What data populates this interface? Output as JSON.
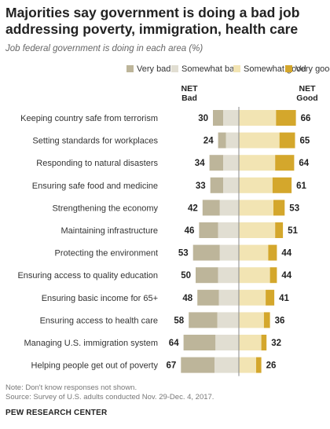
{
  "title": "Majorities say government is doing a bad job addressing poverty, immigration, health care",
  "subtitle": "Job federal government is doing in each area (%)",
  "net_bad_label": [
    "NET",
    "Bad"
  ],
  "net_good_label": [
    "NET",
    "Good"
  ],
  "colors": {
    "very_bad": "#bdb59a",
    "somewhat_bad": "#e1ded2",
    "somewhat_good": "#f2e4b3",
    "very_good": "#d4a72c",
    "divider": "#888888"
  },
  "legend": [
    {
      "name": "Very bad",
      "color": "#bdb59a"
    },
    {
      "name": "Somewhat bad",
      "color": "#e1ded2"
    },
    {
      "name": "Somewhat good",
      "color": "#f2e4b3"
    },
    {
      "name": "Very good",
      "color": "#d4a72c"
    }
  ],
  "chart_data": {
    "type": "bar",
    "stacked": "diverging",
    "categories": [
      "Keeping country safe from terrorism",
      "Setting standards for workplaces",
      "Responding to natural disasters",
      "Ensuring safe food and medicine",
      "Strengthening the economy",
      "Maintaining infrastructure",
      "Protecting the environment",
      "Ensuring access to quality education",
      "Ensuring basic income for 65+",
      "Ensuring access to health care",
      "Managing U.S. immigration system",
      "Helping people get out of poverty"
    ],
    "series": [
      {
        "name": "Very bad",
        "values": [
          12,
          9,
          16,
          15,
          20,
          22,
          31,
          26,
          25,
          33,
          37,
          39
        ]
      },
      {
        "name": "Somewhat bad",
        "values": [
          18,
          15,
          18,
          18,
          22,
          24,
          22,
          24,
          23,
          25,
          27,
          28
        ]
      },
      {
        "name": "Somewhat good",
        "values": [
          43,
          47,
          42,
          39,
          40,
          42,
          34,
          36,
          31,
          29,
          26,
          20
        ]
      },
      {
        "name": "Very good",
        "values": [
          23,
          18,
          22,
          22,
          13,
          9,
          10,
          8,
          10,
          7,
          6,
          6
        ]
      }
    ],
    "net_bad": [
      30,
      24,
      34,
      33,
      42,
      46,
      53,
      50,
      48,
      58,
      64,
      67
    ],
    "net_good": [
      66,
      65,
      64,
      61,
      53,
      51,
      44,
      44,
      41,
      36,
      32,
      26
    ]
  },
  "footnote": "Note: Don't know responses not shown.",
  "source": "Source: Survey of U.S. adults conducted Nov. 29-Dec. 4, 2017.",
  "brand": "PEW RESEARCH CENTER"
}
